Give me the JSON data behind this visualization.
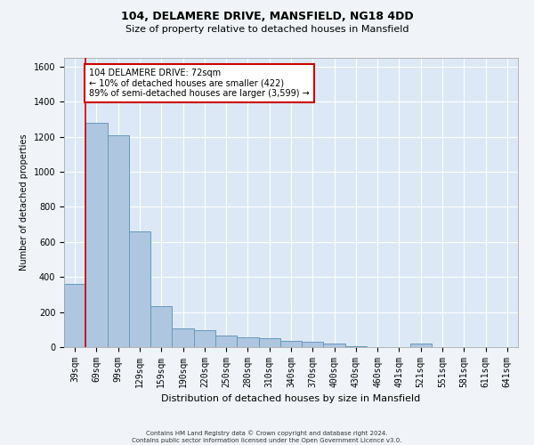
{
  "title1": "104, DELAMERE DRIVE, MANSFIELD, NG18 4DD",
  "title2": "Size of property relative to detached houses in Mansfield",
  "xlabel": "Distribution of detached houses by size in Mansfield",
  "ylabel": "Number of detached properties",
  "footer": "Contains HM Land Registry data © Crown copyright and database right 2024.\nContains public sector information licensed under the Open Government Licence v3.0.",
  "bar_labels": [
    "39sqm",
    "69sqm",
    "99sqm",
    "129sqm",
    "159sqm",
    "190sqm",
    "220sqm",
    "250sqm",
    "280sqm",
    "310sqm",
    "340sqm",
    "370sqm",
    "400sqm",
    "430sqm",
    "460sqm",
    "491sqm",
    "521sqm",
    "551sqm",
    "581sqm",
    "611sqm",
    "641sqm"
  ],
  "bar_values": [
    360,
    1280,
    1210,
    660,
    235,
    108,
    97,
    65,
    58,
    50,
    35,
    30,
    20,
    5,
    0,
    0,
    18,
    0,
    0,
    0,
    0
  ],
  "bar_color": "#aec6e0",
  "bar_edge_color": "#6699bb",
  "background_color": "#dce8f5",
  "grid_color": "#ffffff",
  "ylim": [
    0,
    1650
  ],
  "yticks": [
    0,
    200,
    400,
    600,
    800,
    1000,
    1200,
    1400,
    1600
  ],
  "red_line_x": 0.5,
  "annotation_text": "104 DELAMERE DRIVE: 72sqm\n← 10% of detached houses are smaller (422)\n89% of semi-detached houses are larger (3,599) →",
  "annotation_box_color": "#ffffff",
  "annotation_box_edge": "#cc0000",
  "annotation_text_color": "#000000",
  "title1_fontsize": 9,
  "title2_fontsize": 8,
  "xlabel_fontsize": 8,
  "ylabel_fontsize": 7,
  "tick_fontsize": 7,
  "footer_fontsize": 5,
  "annotation_fontsize": 7
}
